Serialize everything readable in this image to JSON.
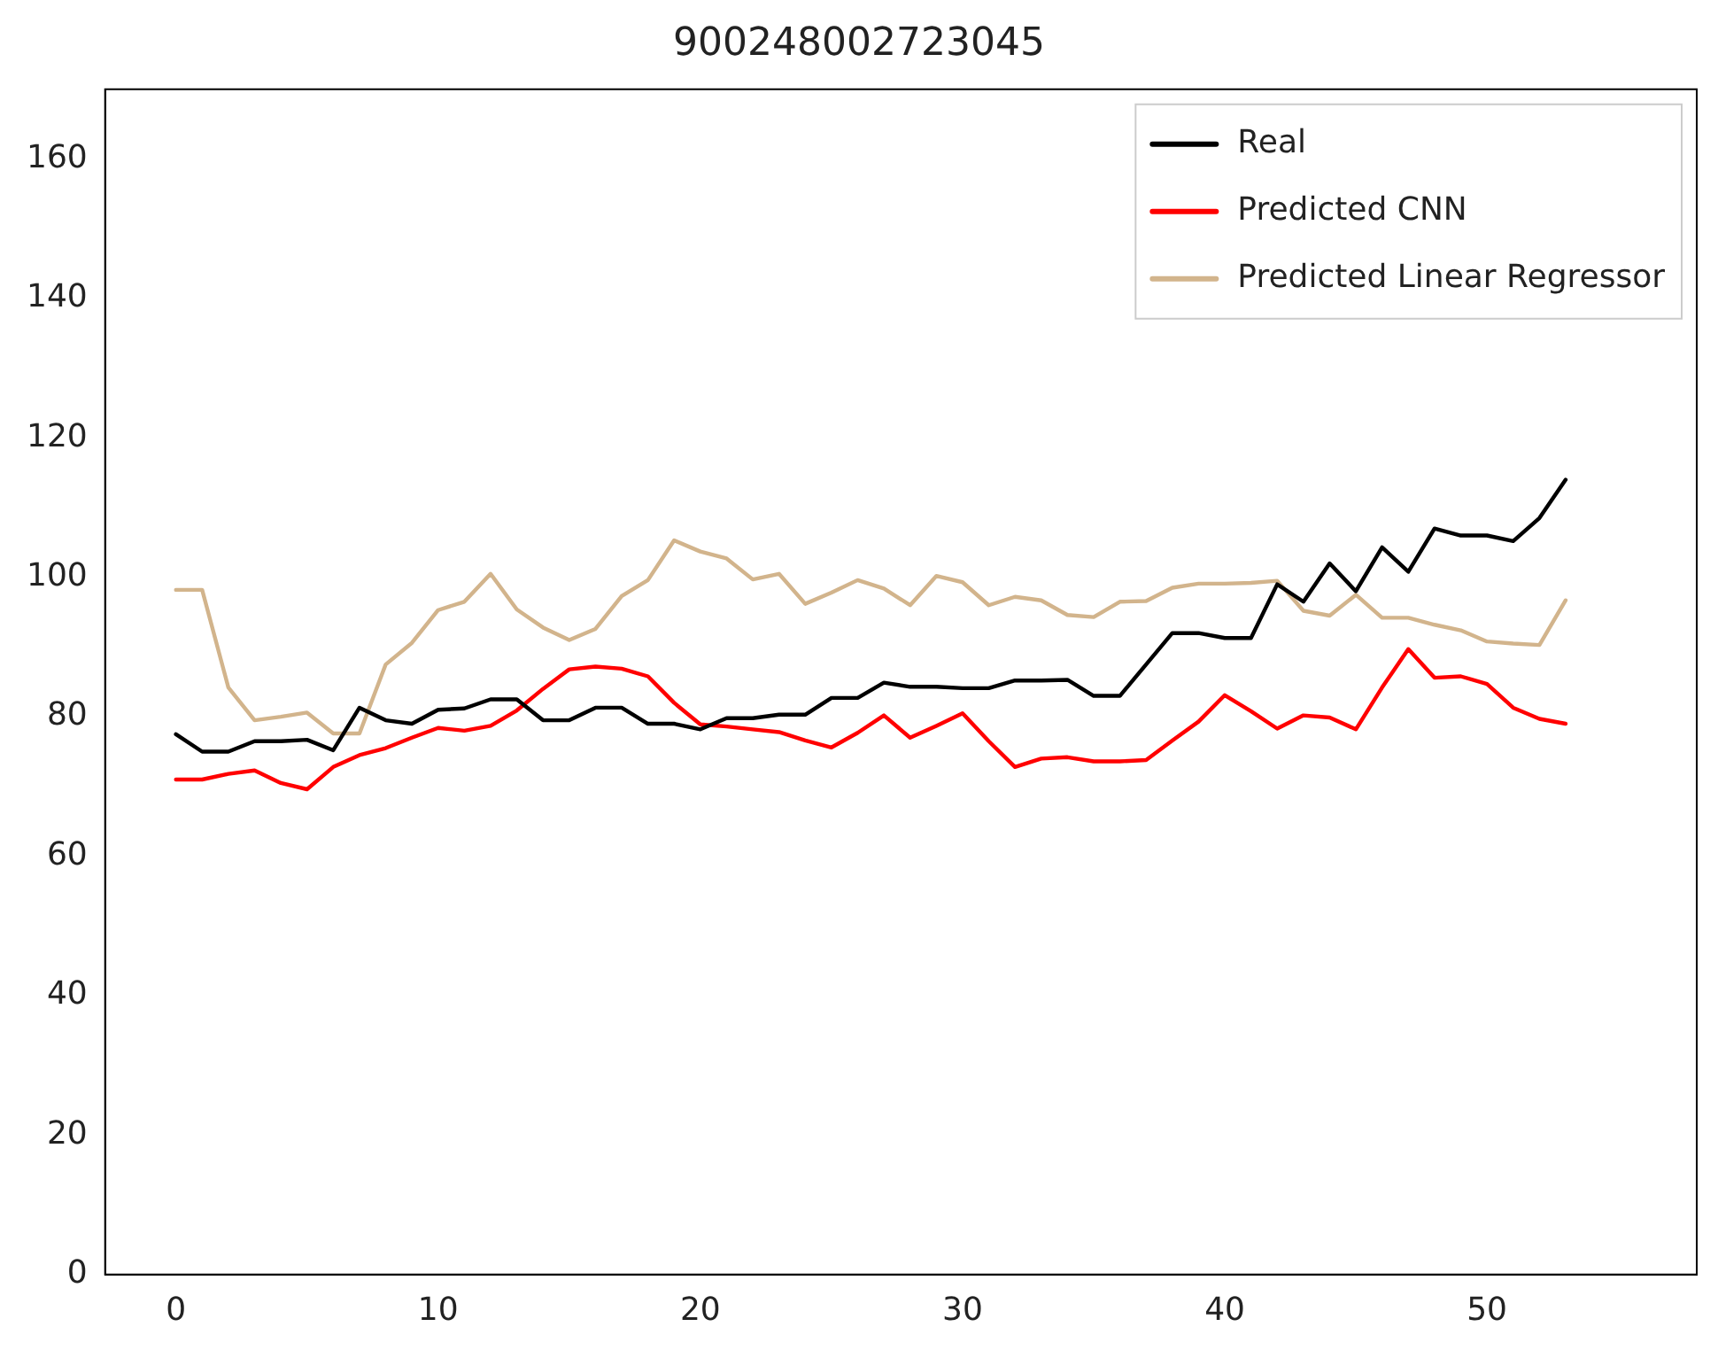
{
  "chart_data": {
    "type": "line",
    "title": "900248002723045",
    "x": [
      0,
      1,
      2,
      3,
      4,
      5,
      6,
      7,
      8,
      9,
      10,
      11,
      12,
      13,
      14,
      15,
      16,
      17,
      18,
      19,
      20,
      21,
      22,
      23,
      24,
      25,
      26,
      27,
      28,
      29,
      30,
      31,
      32,
      33,
      34,
      35,
      36,
      37,
      38,
      39,
      40,
      41,
      42,
      43,
      44,
      45,
      46,
      47,
      48,
      49,
      50,
      51,
      52,
      53
    ],
    "series": [
      {
        "name": "Real",
        "color": "#000000",
        "values": [
          77.5,
          75,
          75,
          76.5,
          76.5,
          76.7,
          75.2,
          81.3,
          79.5,
          79,
          81,
          81.2,
          82.5,
          82.5,
          79.5,
          79.5,
          81.3,
          81.3,
          79,
          79,
          78.2,
          79.8,
          79.8,
          80.3,
          80.3,
          82.7,
          82.7,
          84.9,
          84.3,
          84.3,
          84.1,
          84.1,
          85.2,
          85.2,
          85.3,
          83,
          83,
          87.5,
          92,
          92,
          91.3,
          91.3,
          99,
          96.5,
          102,
          98,
          104.3,
          100.8,
          107,
          106,
          106,
          105.2,
          108.5,
          114
        ]
      },
      {
        "name": "Predicted CNN",
        "color": "#ff0000",
        "values": [
          71,
          71,
          71.8,
          72.3,
          70.5,
          69.6,
          72.8,
          74.5,
          75.5,
          77,
          78.4,
          78,
          78.7,
          80.9,
          84,
          86.8,
          87.2,
          86.9,
          85.8,
          82,
          78.9,
          78.6,
          78.2,
          77.8,
          76.6,
          75.6,
          77.7,
          80.2,
          77,
          78.7,
          80.5,
          76.5,
          72.8,
          74,
          74.2,
          73.6,
          73.6,
          73.8,
          76.6,
          79.3,
          83.1,
          80.8,
          78.3,
          80.2,
          79.9,
          78.2,
          84.2,
          89.7,
          85.6,
          85.8,
          84.7,
          81.3,
          79.7,
          79
        ]
      },
      {
        "name": "Predicted Linear Regressor",
        "color": "#d2b48c",
        "values": [
          98.2,
          98.2,
          84.2,
          79.5,
          80,
          80.6,
          77.6,
          77.6,
          87.5,
          90.6,
          95.3,
          96.5,
          100.5,
          95.4,
          92.8,
          91,
          92.6,
          97.3,
          99.6,
          105.3,
          103.7,
          102.7,
          99.7,
          100.5,
          96.2,
          97.8,
          99.6,
          98.4,
          96,
          100.2,
          99.3,
          96,
          97.2,
          96.7,
          94.6,
          94.3,
          96.5,
          96.6,
          98.5,
          99.1,
          99.1,
          99.2,
          99.5,
          95.2,
          94.5,
          97.5,
          94.2,
          94.2,
          93.2,
          92.4,
          90.8,
          90.5,
          90.3,
          96.7
        ]
      }
    ],
    "xlim": [
      -2.7,
      58
    ],
    "xticks": [
      0,
      10,
      20,
      30,
      40,
      50
    ],
    "ylim": [
      0,
      170
    ],
    "yticks": [
      0,
      20,
      40,
      60,
      80,
      100,
      120,
      140,
      160
    ],
    "legend": "top right",
    "marker": "none",
    "line_style": "solid"
  }
}
